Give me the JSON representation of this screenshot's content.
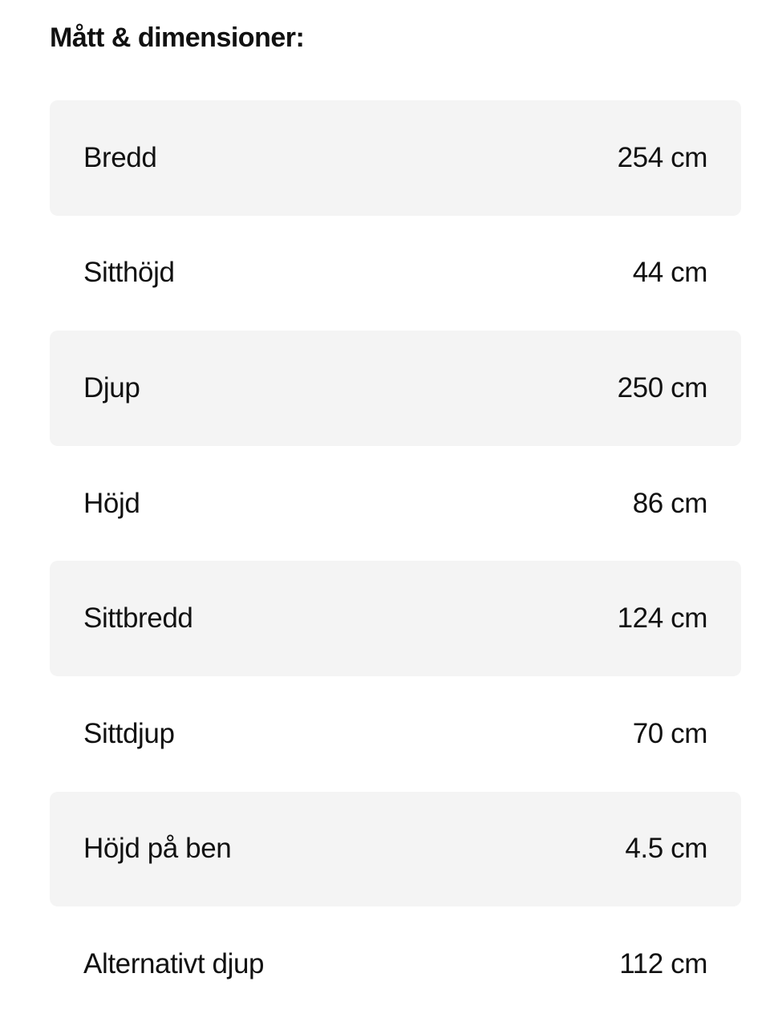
{
  "title": "Mått & dimensioner:",
  "rows": [
    {
      "label": "Bredd",
      "value": "254 cm"
    },
    {
      "label": "Sitthöjd",
      "value": "44 cm"
    },
    {
      "label": "Djup",
      "value": "250 cm"
    },
    {
      "label": "Höjd",
      "value": "86 cm"
    },
    {
      "label": "Sittbredd",
      "value": "124 cm"
    },
    {
      "label": "Sittdjup",
      "value": "70 cm"
    },
    {
      "label": "Höjd på ben",
      "value": "4.5 cm"
    },
    {
      "label": "Alternativt djup",
      "value": "112 cm"
    }
  ],
  "colors": {
    "stripe": "#f4f4f4",
    "text": "#111111"
  }
}
